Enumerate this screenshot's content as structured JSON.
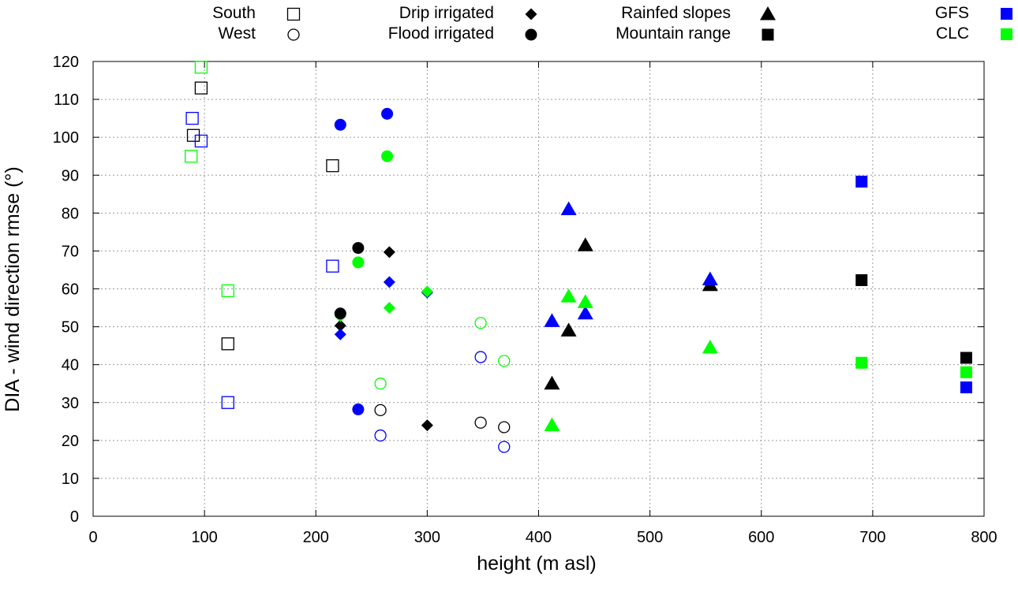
{
  "chart_data": {
    "type": "scatter",
    "title": "",
    "xlabel": "height (m asl)",
    "ylabel": "DIA - wind direction rmse (°)",
    "xlim": [
      0,
      800
    ],
    "ylim": [
      0,
      120
    ],
    "x_ticks": [
      0,
      100,
      200,
      300,
      400,
      500,
      600,
      700,
      800
    ],
    "y_ticks": [
      0,
      10,
      20,
      30,
      40,
      50,
      60,
      70,
      80,
      90,
      100,
      110,
      120
    ],
    "grid": true,
    "legend_position": "top",
    "shape_legend": [
      {
        "label": "South",
        "shape": "square",
        "filled": false
      },
      {
        "label": "West",
        "shape": "circle",
        "filled": false
      },
      {
        "label": "Drip irrigated",
        "shape": "diamond",
        "filled": true
      },
      {
        "label": "Flood irrigated",
        "shape": "circle",
        "filled": true
      },
      {
        "label": "Rainfed slopes",
        "shape": "triangle",
        "filled": true
      },
      {
        "label": "Mountain range",
        "shape": "square",
        "filled": true
      }
    ],
    "color_legend": [
      {
        "label": "GFS",
        "color": "#0000ff"
      },
      {
        "label": "CLC",
        "color": "#00ff00"
      }
    ],
    "series": [
      {
        "name": "South - baseline",
        "shape": "square",
        "filled": false,
        "color": "#000000",
        "points": [
          [
            90,
            100.5
          ],
          [
            97,
            113
          ],
          [
            121,
            45.5
          ],
          [
            215,
            92.5
          ]
        ]
      },
      {
        "name": "South - GFS",
        "shape": "square",
        "filled": false,
        "color": "#0000ff",
        "points": [
          [
            89,
            105
          ],
          [
            97,
            99
          ],
          [
            121,
            30
          ],
          [
            215,
            66
          ]
        ]
      },
      {
        "name": "South - CLC",
        "shape": "square",
        "filled": false,
        "color": "#00ff00",
        "points": [
          [
            88,
            95
          ],
          [
            97,
            118.5
          ],
          [
            121,
            59.5
          ]
        ]
      },
      {
        "name": "West - baseline",
        "shape": "circle",
        "filled": false,
        "color": "#000000",
        "points": [
          [
            258,
            28
          ],
          [
            348,
            24.7
          ],
          [
            369,
            23.5
          ]
        ]
      },
      {
        "name": "West - GFS",
        "shape": "circle",
        "filled": false,
        "color": "#0000ff",
        "points": [
          [
            258,
            21.3
          ],
          [
            348,
            42
          ],
          [
            369,
            18.3
          ]
        ]
      },
      {
        "name": "West - CLC",
        "shape": "circle",
        "filled": false,
        "color": "#00ff00",
        "points": [
          [
            258,
            35
          ],
          [
            348,
            51
          ],
          [
            369,
            41
          ]
        ]
      },
      {
        "name": "Drip irrigated - baseline",
        "shape": "diamond",
        "filled": true,
        "color": "#000000",
        "points": [
          [
            222,
            50.3
          ],
          [
            266,
            69.7
          ],
          [
            300,
            24
          ]
        ]
      },
      {
        "name": "Drip irrigated - GFS",
        "shape": "diamond",
        "filled": true,
        "color": "#0000ff",
        "points": [
          [
            222,
            48
          ],
          [
            266,
            61.8
          ],
          [
            300,
            59
          ]
        ]
      },
      {
        "name": "Drip irrigated - CLC",
        "shape": "diamond",
        "filled": true,
        "color": "#00ff00",
        "points": [
          [
            222,
            52.8
          ],
          [
            266,
            55
          ],
          [
            300,
            59.3
          ]
        ]
      },
      {
        "name": "Flood irrigated - baseline",
        "shape": "circle",
        "filled": true,
        "color": "#000000",
        "points": [
          [
            222,
            53.5
          ],
          [
            238,
            70.8
          ]
        ]
      },
      {
        "name": "Flood irrigated - GFS",
        "shape": "circle",
        "filled": true,
        "color": "#0000ff",
        "points": [
          [
            222,
            103.3
          ],
          [
            238,
            28.2
          ],
          [
            264,
            106.2
          ]
        ]
      },
      {
        "name": "Flood irrigated - CLC",
        "shape": "circle",
        "filled": true,
        "color": "#00ff00",
        "points": [
          [
            238,
            67
          ],
          [
            264,
            95
          ]
        ]
      },
      {
        "name": "Rainfed slopes - baseline",
        "shape": "triangle",
        "filled": true,
        "color": "#000000",
        "points": [
          [
            412,
            35
          ],
          [
            427,
            49
          ],
          [
            442,
            71.5
          ],
          [
            554,
            61
          ]
        ]
      },
      {
        "name": "Rainfed slopes - GFS",
        "shape": "triangle",
        "filled": true,
        "color": "#0000ff",
        "points": [
          [
            412,
            51.5
          ],
          [
            427,
            81
          ],
          [
            442,
            53.5
          ],
          [
            554,
            62.5
          ]
        ]
      },
      {
        "name": "Rainfed slopes - CLC",
        "shape": "triangle",
        "filled": true,
        "color": "#00ff00",
        "points": [
          [
            412,
            24
          ],
          [
            427,
            58
          ],
          [
            442,
            56.5
          ],
          [
            554,
            44.5
          ]
        ]
      },
      {
        "name": "Mountain range - baseline",
        "shape": "square",
        "filled": true,
        "color": "#000000",
        "points": [
          [
            690,
            62.3
          ],
          [
            784,
            41.8
          ]
        ]
      },
      {
        "name": "Mountain range - GFS",
        "shape": "square",
        "filled": true,
        "color": "#0000ff",
        "points": [
          [
            690,
            88.3
          ],
          [
            784,
            34
          ]
        ]
      },
      {
        "name": "Mountain range - CLC",
        "shape": "square",
        "filled": true,
        "color": "#00ff00",
        "points": [
          [
            690,
            40.5
          ],
          [
            784,
            38
          ]
        ]
      }
    ]
  }
}
